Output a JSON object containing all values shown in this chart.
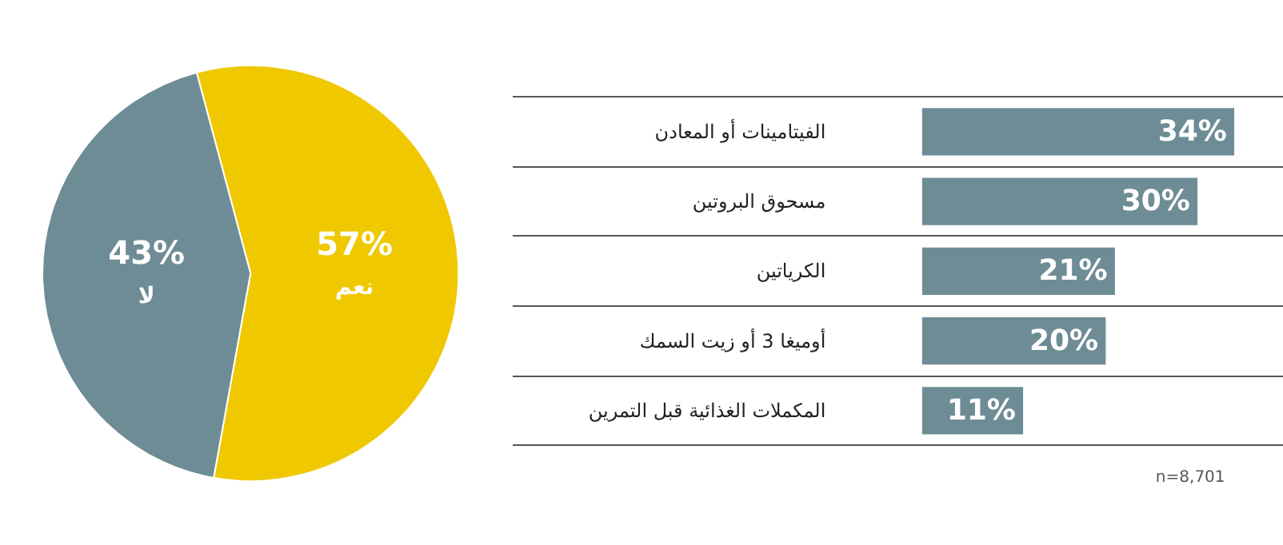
{
  "chart_data": [
    {
      "type": "pie",
      "categories": [
        "نعم",
        "لا"
      ],
      "values": [
        57,
        43
      ],
      "colors": [
        "#f0c800",
        "#6e8c96"
      ],
      "value_labels": [
        "57%",
        "43%"
      ]
    },
    {
      "type": "bar",
      "orientation": "horizontal",
      "color": "#6e8c96",
      "grid": "y",
      "categories": [
        "الفيتامينات أو المعادن",
        "مسحوق البروتين",
        "الكرياتين",
        "أوميغا 3 أو زيت السمك",
        "المكملات الغذائية قبل التمرين"
      ],
      "values": [
        34,
        30,
        21,
        20,
        11
      ],
      "value_labels": [
        "34%",
        "30%",
        "21%",
        "20%",
        "11%"
      ],
      "annotations": [
        "n=8,701"
      ]
    }
  ]
}
